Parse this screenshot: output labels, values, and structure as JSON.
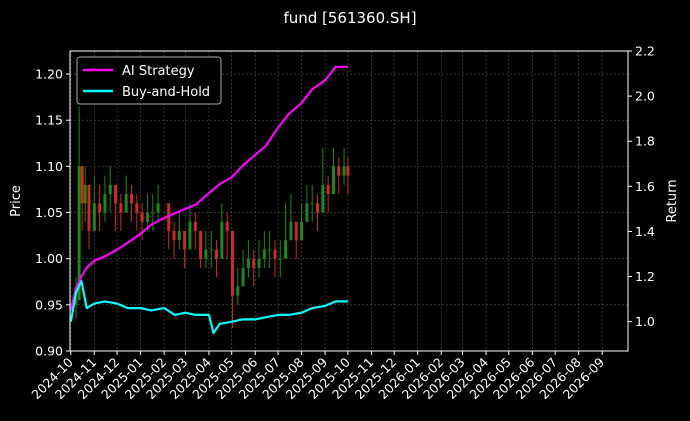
{
  "chart_data": {
    "type": "line",
    "title": "fund [561360.SH]",
    "xlabel": "",
    "ylabel": "Price",
    "y2label": "Return",
    "x_tick_labels": [
      "2024-10",
      "2024-11",
      "2024-12",
      "2025-01",
      "2025-02",
      "2025-03",
      "2025-04",
      "2025-05",
      "2025-06",
      "2025-07",
      "2025-08",
      "2025-09",
      "2025-10",
      "2025-11",
      "2025-12",
      "2026-01",
      "2026-02",
      "2026-03",
      "2026-04",
      "2026-05",
      "2026-06",
      "2026-07",
      "2026-08",
      "2026-09"
    ],
    "xlim": [
      "2024-09-30",
      "2026-10-05"
    ],
    "ylim": [
      0.9,
      1.225
    ],
    "y2lim": [
      0.87,
      2.2
    ],
    "y_ticks": [
      0.9,
      0.95,
      1.0,
      1.05,
      1.1,
      1.15,
      1.2
    ],
    "y2_ticks": [
      1.0,
      1.2,
      1.4,
      1.6,
      1.8,
      2.0,
      2.2
    ],
    "grid": true,
    "legend_position": "top-left",
    "price_candles": {
      "dates": [
        "2024-10-08",
        "2024-10-12",
        "2024-10-16",
        "2024-10-20",
        "2024-10-25",
        "2024-11-01",
        "2024-11-08",
        "2024-11-15",
        "2024-11-22",
        "2024-11-29",
        "2024-12-06",
        "2024-12-13",
        "2024-12-20",
        "2024-12-27",
        "2025-01-03",
        "2025-01-10",
        "2025-01-17",
        "2025-01-24",
        "2025-02-07",
        "2025-02-14",
        "2025-02-21",
        "2025-02-28",
        "2025-03-07",
        "2025-03-14",
        "2025-03-21",
        "2025-03-28",
        "2025-04-04",
        "2025-04-11",
        "2025-04-18",
        "2025-04-25",
        "2025-05-02",
        "2025-05-09",
        "2025-05-16",
        "2025-05-23",
        "2025-05-30",
        "2025-06-06",
        "2025-06-13",
        "2025-06-20",
        "2025-06-27",
        "2025-07-04",
        "2025-07-11",
        "2025-07-18",
        "2025-07-25",
        "2025-08-01",
        "2025-08-08",
        "2025-08-15",
        "2025-08-22",
        "2025-08-29",
        "2025-09-05",
        "2025-09-12",
        "2025-09-19",
        "2025-09-26",
        "2025-10-01"
      ],
      "close": [
        0.955,
        1.1,
        1.06,
        1.08,
        1.03,
        1.06,
        1.05,
        1.07,
        1.08,
        1.06,
        1.05,
        1.07,
        1.06,
        1.05,
        1.04,
        1.05,
        1.05,
        1.06,
        1.03,
        1.02,
        1.03,
        1.01,
        1.04,
        1.03,
        1.0,
        1.01,
        1.01,
        1.0,
        1.04,
        1.03,
        0.96,
        0.97,
        0.99,
        1.0,
        0.99,
        1.0,
        1.01,
        1.01,
        1.0,
        1.0,
        1.02,
        1.04,
        1.02,
        1.04,
        1.06,
        1.06,
        1.05,
        1.08,
        1.07,
        1.1,
        1.09,
        1.1,
        1.09
      ],
      "high": [
        0.98,
        1.165,
        1.1,
        1.1,
        1.07,
        1.09,
        1.08,
        1.09,
        1.1,
        1.08,
        1.07,
        1.09,
        1.08,
        1.07,
        1.06,
        1.07,
        1.07,
        1.08,
        1.05,
        1.04,
        1.05,
        1.03,
        1.06,
        1.05,
        1.03,
        1.03,
        1.03,
        1.02,
        1.06,
        1.05,
        0.99,
        0.99,
        1.01,
        1.02,
        1.01,
        1.02,
        1.03,
        1.03,
        1.02,
        1.02,
        1.06,
        1.07,
        1.04,
        1.06,
        1.08,
        1.08,
        1.07,
        1.12,
        1.09,
        1.12,
        1.11,
        1.12,
        1.11
      ],
      "low": [
        0.935,
        1.0,
        1.03,
        1.04,
        1.01,
        1.03,
        1.03,
        1.04,
        1.05,
        1.03,
        1.03,
        1.05,
        1.04,
        1.03,
        1.02,
        1.03,
        1.03,
        1.04,
        1.01,
        1.0,
        1.01,
        0.99,
        1.02,
        1.01,
        0.99,
        0.99,
        0.99,
        0.98,
        1.02,
        1.0,
        0.925,
        0.95,
        0.97,
        0.98,
        0.97,
        0.98,
        0.99,
        0.99,
        0.98,
        0.98,
        1.0,
        1.02,
        1.0,
        1.02,
        1.04,
        1.04,
        1.03,
        1.06,
        1.05,
        1.08,
        1.07,
        1.08,
        1.07
      ]
    },
    "series": [
      {
        "name": "AI Strategy",
        "color": "#ff00ff",
        "x": [
          "2024-10-01",
          "2024-10-08",
          "2024-10-15",
          "2024-10-22",
          "2024-11-01",
          "2024-11-15",
          "2024-12-01",
          "2024-12-15",
          "2025-01-01",
          "2025-01-15",
          "2025-02-01",
          "2025-02-15",
          "2025-03-01",
          "2025-03-15",
          "2025-04-01",
          "2025-04-15",
          "2025-05-01",
          "2025-05-15",
          "2025-06-01",
          "2025-06-15",
          "2025-07-01",
          "2025-07-15",
          "2025-08-01",
          "2025-08-15",
          "2025-09-01",
          "2025-09-08",
          "2025-09-15",
          "2025-10-01"
        ],
        "y": [
          1.05,
          1.15,
          1.2,
          1.24,
          1.27,
          1.29,
          1.32,
          1.35,
          1.39,
          1.43,
          1.46,
          1.48,
          1.5,
          1.52,
          1.57,
          1.61,
          1.64,
          1.69,
          1.74,
          1.78,
          1.86,
          1.92,
          1.97,
          2.03,
          2.07,
          2.1,
          2.13,
          2.13
        ]
      },
      {
        "name": "Buy-and-Hold",
        "color": "#00ffff",
        "x": [
          "2024-10-01",
          "2024-10-08",
          "2024-10-15",
          "2024-10-22",
          "2024-11-01",
          "2024-11-15",
          "2024-12-01",
          "2024-12-15",
          "2025-01-01",
          "2025-01-15",
          "2025-02-01",
          "2025-02-15",
          "2025-03-01",
          "2025-03-15",
          "2025-04-01",
          "2025-04-07",
          "2025-04-15",
          "2025-05-01",
          "2025-05-15",
          "2025-06-01",
          "2025-06-15",
          "2025-07-01",
          "2025-07-15",
          "2025-08-01",
          "2025-08-15",
          "2025-09-01",
          "2025-09-15",
          "2025-10-01"
        ],
        "y": [
          1.0,
          1.13,
          1.18,
          1.06,
          1.08,
          1.09,
          1.08,
          1.06,
          1.06,
          1.05,
          1.06,
          1.03,
          1.04,
          1.03,
          1.03,
          0.95,
          0.99,
          1.0,
          1.01,
          1.01,
          1.02,
          1.03,
          1.03,
          1.04,
          1.06,
          1.07,
          1.09,
          1.09
        ]
      }
    ]
  }
}
